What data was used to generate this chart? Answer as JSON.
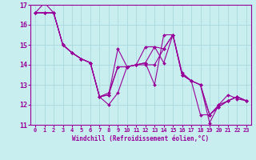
{
  "xlabel": "Windchill (Refroidissement éolien,°C)",
  "background_color": "#c8eef0",
  "grid_color": "#a8d8dc",
  "line_color": "#990099",
  "xlim": [
    -0.5,
    23.5
  ],
  "ylim": [
    11,
    17
  ],
  "xticks": [
    0,
    1,
    2,
    3,
    4,
    5,
    6,
    7,
    8,
    9,
    10,
    11,
    12,
    13,
    14,
    15,
    16,
    17,
    18,
    19,
    20,
    21,
    22,
    23
  ],
  "yticks": [
    11,
    12,
    13,
    14,
    15,
    16,
    17
  ],
  "series": [
    [
      16.6,
      17.1,
      16.6,
      15.0,
      14.6,
      14.3,
      14.1,
      12.4,
      12.0,
      12.6,
      13.9,
      14.0,
      14.1,
      13.0,
      15.5,
      15.5,
      13.6,
      13.2,
      13.0,
      11.1,
      12.0,
      12.5,
      12.3,
      12.2
    ],
    [
      16.6,
      16.6,
      16.6,
      15.0,
      14.6,
      14.3,
      14.1,
      12.4,
      12.6,
      13.9,
      13.9,
      14.0,
      14.1,
      14.9,
      14.1,
      15.5,
      13.5,
      13.2,
      13.0,
      11.5,
      12.0,
      12.2,
      12.4,
      12.2
    ],
    [
      16.6,
      16.6,
      16.6,
      15.0,
      14.6,
      14.3,
      14.1,
      12.4,
      12.5,
      14.8,
      13.9,
      14.0,
      14.9,
      14.9,
      14.8,
      15.5,
      13.5,
      13.2,
      11.5,
      11.5,
      11.9,
      12.2,
      12.4,
      12.2
    ],
    [
      16.6,
      16.6,
      16.6,
      15.0,
      14.6,
      14.3,
      14.1,
      12.4,
      12.5,
      13.9,
      13.9,
      14.0,
      14.0,
      14.0,
      14.8,
      15.5,
      13.5,
      13.2,
      13.0,
      11.5,
      11.9,
      12.2,
      12.4,
      12.2
    ]
  ]
}
